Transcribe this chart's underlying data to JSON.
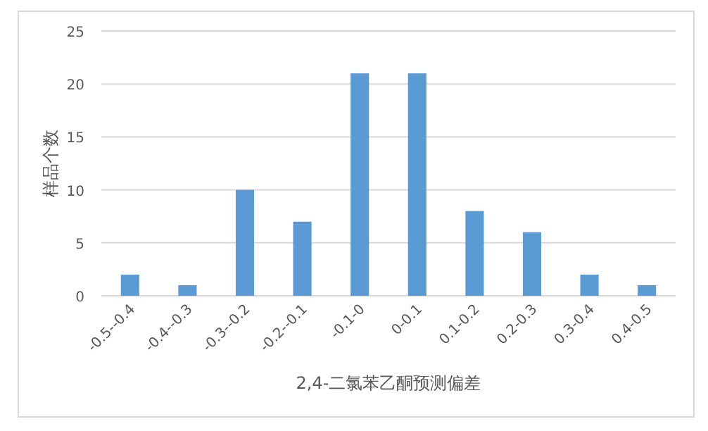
{
  "chart_data": {
    "type": "bar",
    "xlabel": "2,4-二氯苯乙酮预测偏差",
    "ylabel": "样品个数",
    "categories": [
      "-0.5--0.4",
      "-0.4--0.3",
      "-0.3--0.2",
      "-0.2--0.1",
      "-0.1-0",
      "0-0.1",
      "0.1-0.2",
      "0.2-0.3",
      "0.3-0.4",
      "0.4-0.5"
    ],
    "values": [
      2,
      1,
      10,
      7,
      21,
      21,
      8,
      6,
      2,
      1
    ],
    "color": "#5b9bd5",
    "ylim": [
      0,
      25
    ],
    "yticks": [
      0,
      5,
      10,
      15,
      20,
      25
    ],
    "grid": "y"
  }
}
